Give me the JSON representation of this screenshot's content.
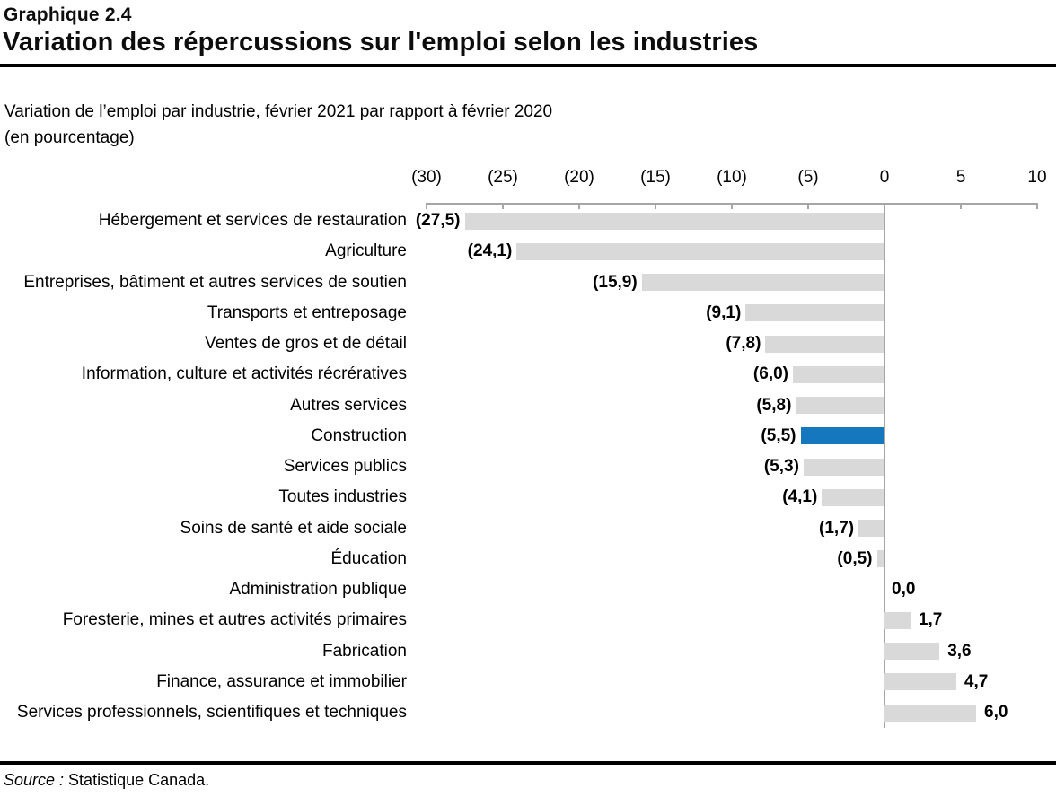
{
  "header": {
    "chart_number": "Graphique 2.4",
    "title": "Variation des répercussions sur l'emploi selon les industries"
  },
  "subtitle": {
    "line1": "Variation de l’emploi par industrie, février 2021 par rapport à février 2020",
    "line2": "(en pourcentage)"
  },
  "footer": {
    "source_label": "Source :",
    "source_text": " Statistique Canada."
  },
  "chart_data": {
    "type": "bar",
    "orientation": "horizontal",
    "title": "Variation des répercussions sur l'emploi selon les industries",
    "xlabel": "(en pourcentage)",
    "xlim": [
      -30,
      10
    ],
    "grid": false,
    "axis_ticks": [
      "(30)",
      "(25)",
      "(20)",
      "(15)",
      "(10)",
      "(5)",
      "0",
      "5",
      "10"
    ],
    "axis_tick_values": [
      -30,
      -25,
      -20,
      -15,
      -10,
      -5,
      0,
      5,
      10
    ],
    "categories": [
      "Hébergement et services de restauration",
      "Agriculture",
      "Entreprises, bâtiment et autres services de soutien",
      "Transports et entreposage",
      "Ventes de gros et de détail",
      "Information, culture et activités récrératives",
      "Autres services",
      "Construction",
      "Services publics",
      "Toutes industries",
      "Soins de santé et aide sociale",
      "Éducation",
      "Administration publique",
      "Foresterie, mines et autres activités primaires",
      "Fabrication",
      "Finance, assurance et immobilier",
      "Services professionnels, scientifiques et techniques"
    ],
    "values": [
      -27.5,
      -24.1,
      -15.9,
      -9.1,
      -7.8,
      -6.0,
      -5.8,
      -5.5,
      -5.3,
      -4.1,
      -1.7,
      -0.5,
      0.0,
      1.7,
      3.6,
      4.7,
      6.0
    ],
    "value_labels": [
      "(27,5)",
      "(24,1)",
      "(15,9)",
      "(9,1)",
      "(7,8)",
      "(6,0)",
      "(5,8)",
      "(5,5)",
      "(5,3)",
      "(4,1)",
      "(1,7)",
      "(0,5)",
      "0,0",
      "1,7",
      "3,6",
      "4,7",
      "6,0"
    ],
    "highlight_index": 7,
    "colors": {
      "bar": "#d9d9d9",
      "highlight": "#1577bd",
      "axis": "#a6a6a6",
      "text": "#000000"
    }
  }
}
